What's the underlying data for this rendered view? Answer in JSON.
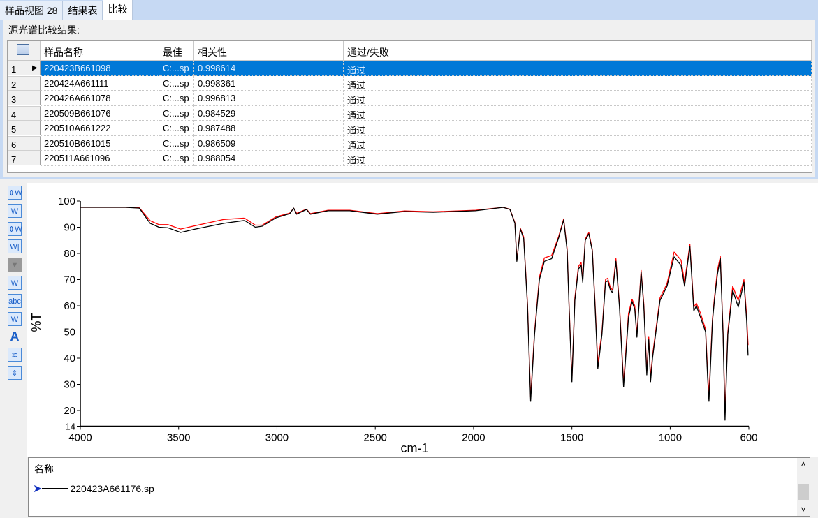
{
  "tabs": [
    {
      "label": "样品视图 28",
      "active": false
    },
    {
      "label": "结果表",
      "active": false
    },
    {
      "label": "比较",
      "active": true
    }
  ],
  "caption": "源光谱比较结果:",
  "table": {
    "columns": [
      "样品名称",
      "最佳",
      "相关性",
      "通过/失败"
    ],
    "rows": [
      {
        "n": "1",
        "name": "220423B661098",
        "best": "C:...sp",
        "corr": "0.998614",
        "result": "通过",
        "selected": true
      },
      {
        "n": "2",
        "name": "220424A661111",
        "best": "C:...sp",
        "corr": "0.998361",
        "result": "通过"
      },
      {
        "n": "3",
        "name": "220426A661078",
        "best": "C:...sp",
        "corr": "0.996813",
        "result": "通过"
      },
      {
        "n": "4",
        "name": "220509B661076",
        "best": "C:...sp",
        "corr": "0.984529",
        "result": "通过"
      },
      {
        "n": "5",
        "name": "220510A661222",
        "best": "C:...sp",
        "corr": "0.987488",
        "result": "通过"
      },
      {
        "n": "6",
        "name": "220510B661015",
        "best": "C:...sp",
        "corr": "0.986509",
        "result": "通过"
      },
      {
        "n": "7",
        "name": "220511A661096",
        "best": "C:...sp",
        "corr": "0.988054",
        "result": "通过"
      }
    ]
  },
  "toolbar": [
    "auto-scale-icon",
    "scale-x-icon",
    "scale-y-icon",
    "cursor-icon",
    "overlay-icon",
    "peak-label-icon",
    "text-label-icon",
    "format-icon",
    "font-icon",
    "stack-icon",
    "expand-icon"
  ],
  "toolbar_glyphs": [
    "⇕W",
    "W",
    "⇕W",
    "W|",
    "▼",
    "W",
    "abc",
    "W",
    "A",
    "≋",
    "⇕"
  ],
  "legend": {
    "header": "名称",
    "item": "220423A661176.sp",
    "scroll_up": "˄",
    "scroll_down": "˅"
  },
  "chart_data": {
    "type": "line",
    "xlabel": "cm-1",
    "ylabel": "%T",
    "xlim": [
      4000,
      600
    ],
    "ylim": [
      14,
      100
    ],
    "grid": false,
    "xticks": [
      4000,
      3500,
      3000,
      2500,
      2000,
      1500,
      1000,
      600
    ],
    "yticks": [
      100,
      90,
      80,
      70,
      60,
      50,
      40,
      30,
      20,
      14
    ],
    "x": [
      4000,
      3770,
      3700,
      3645,
      3600,
      3555,
      3490,
      3415,
      3270,
      3165,
      3110,
      3075,
      3005,
      2935,
      2915,
      2900,
      2850,
      2830,
      2740,
      2630,
      2490,
      2350,
      2205,
      1990,
      1850,
      1815,
      1790,
      1780,
      1762,
      1745,
      1726,
      1710,
      1690,
      1665,
      1640,
      1603,
      1567,
      1542,
      1524,
      1514,
      1500,
      1485,
      1467,
      1453,
      1445,
      1432,
      1414,
      1396,
      1382,
      1368,
      1347,
      1329,
      1318,
      1304,
      1293,
      1276,
      1258,
      1237,
      1212,
      1194,
      1180,
      1169,
      1148,
      1134,
      1119,
      1109,
      1100,
      1090,
      1052,
      1016,
      980,
      945,
      927,
      900,
      880,
      867,
      845,
      820,
      810,
      803,
      785,
      775,
      760,
      745,
      731,
      721,
      707,
      682,
      654,
      625,
      611,
      604
    ],
    "series": [
      {
        "color": "#000000",
        "y": [
          97.6,
          97.6,
          97.3,
          91.5,
          90,
          89.8,
          88,
          89.3,
          91.5,
          92.6,
          90,
          90.4,
          93.6,
          95.2,
          97.3,
          95,
          96.8,
          95,
          96.3,
          96.3,
          95,
          96,
          95.7,
          96.3,
          97.6,
          96.8,
          91.5,
          77,
          89.3,
          85.6,
          60,
          23.5,
          49,
          70,
          77,
          78,
          86,
          92.8,
          81,
          59,
          31,
          62,
          74,
          75.5,
          69,
          85,
          87.5,
          81,
          59.5,
          36,
          49,
          69,
          69.6,
          66,
          65,
          77,
          59.5,
          29,
          55.5,
          61.6,
          58.7,
          48,
          72.8,
          59.5,
          33.6,
          47,
          31,
          40,
          62,
          67.5,
          78.7,
          75.5,
          67.5,
          82.7,
          58,
          60,
          55.5,
          50,
          33,
          23.5,
          54,
          62,
          72,
          78,
          49,
          16.3,
          49,
          66,
          59.5,
          69,
          54,
          41
        ]
      },
      {
        "color": "#ff0000",
        "y": [
          97.6,
          97.6,
          97.4,
          92.5,
          91,
          91,
          89.3,
          90.6,
          93,
          93.5,
          90.8,
          90.8,
          94,
          95.4,
          97.3,
          95.3,
          96.9,
          95.2,
          96.5,
          96.5,
          95.2,
          96.2,
          95.9,
          96.5,
          97.6,
          96.9,
          91.8,
          77.5,
          89.6,
          86.3,
          61,
          25,
          50,
          71,
          78.3,
          79.2,
          86.5,
          93.2,
          81.7,
          60,
          32,
          63,
          75,
          76.5,
          70,
          85.5,
          88,
          81.5,
          60.5,
          38,
          50,
          70,
          70.5,
          67,
          66,
          78,
          60.5,
          30.5,
          57,
          62.5,
          60,
          49,
          73.5,
          60.5,
          35,
          48,
          32.5,
          41,
          63,
          68.5,
          80.5,
          77.5,
          69,
          83.5,
          59.5,
          61,
          57,
          51,
          35,
          26,
          55,
          63,
          73.5,
          78.8,
          50,
          19,
          50,
          67.5,
          62,
          70,
          56,
          45
        ]
      }
    ]
  }
}
